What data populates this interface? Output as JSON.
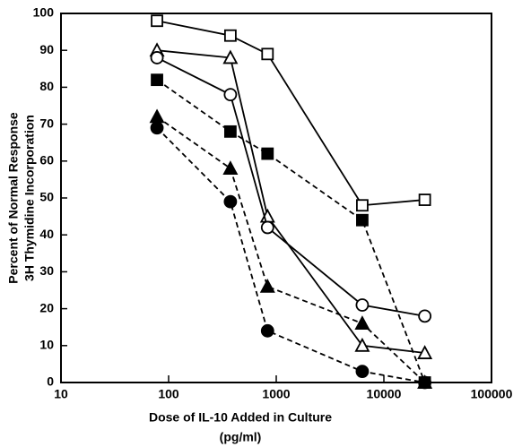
{
  "chart_data": {
    "type": "line",
    "xlabel": [
      "Dose of IL-10 Added in Culture",
      "(pg/ml)"
    ],
    "ylabel": [
      "Percent of Normal Response",
      "3H Thymidine Incorporation"
    ],
    "xscale": "log",
    "xlim": [
      10,
      100000
    ],
    "xticks": [
      10,
      100,
      1000,
      10000,
      100000
    ],
    "ylim": [
      0,
      100
    ],
    "yticks": [
      0,
      10,
      20,
      30,
      40,
      50,
      60,
      70,
      80,
      90,
      100
    ],
    "x": [
      78,
      375,
      830,
      6300,
      24000
    ],
    "series": [
      {
        "color": "#000000",
        "marker": "square",
        "filled": false,
        "dashed": false,
        "values": [
          98,
          94,
          89,
          48,
          49.5
        ]
      },
      {
        "color": "#000000",
        "marker": "triangle",
        "filled": false,
        "dashed": false,
        "values": [
          90,
          88,
          45,
          10,
          8
        ]
      },
      {
        "color": "#000000",
        "marker": "circle",
        "filled": false,
        "dashed": false,
        "values": [
          88,
          78,
          42,
          21,
          18
        ]
      },
      {
        "color": "#000000",
        "marker": "square",
        "filled": true,
        "dashed": true,
        "values": [
          82,
          68,
          62,
          44,
          0
        ]
      },
      {
        "color": "#000000",
        "marker": "triangle",
        "filled": true,
        "dashed": true,
        "values": [
          72,
          58,
          26,
          16,
          0
        ]
      },
      {
        "color": "#000000",
        "marker": "circle",
        "filled": true,
        "dashed": true,
        "values": [
          69,
          49,
          14,
          3,
          0
        ]
      }
    ]
  }
}
